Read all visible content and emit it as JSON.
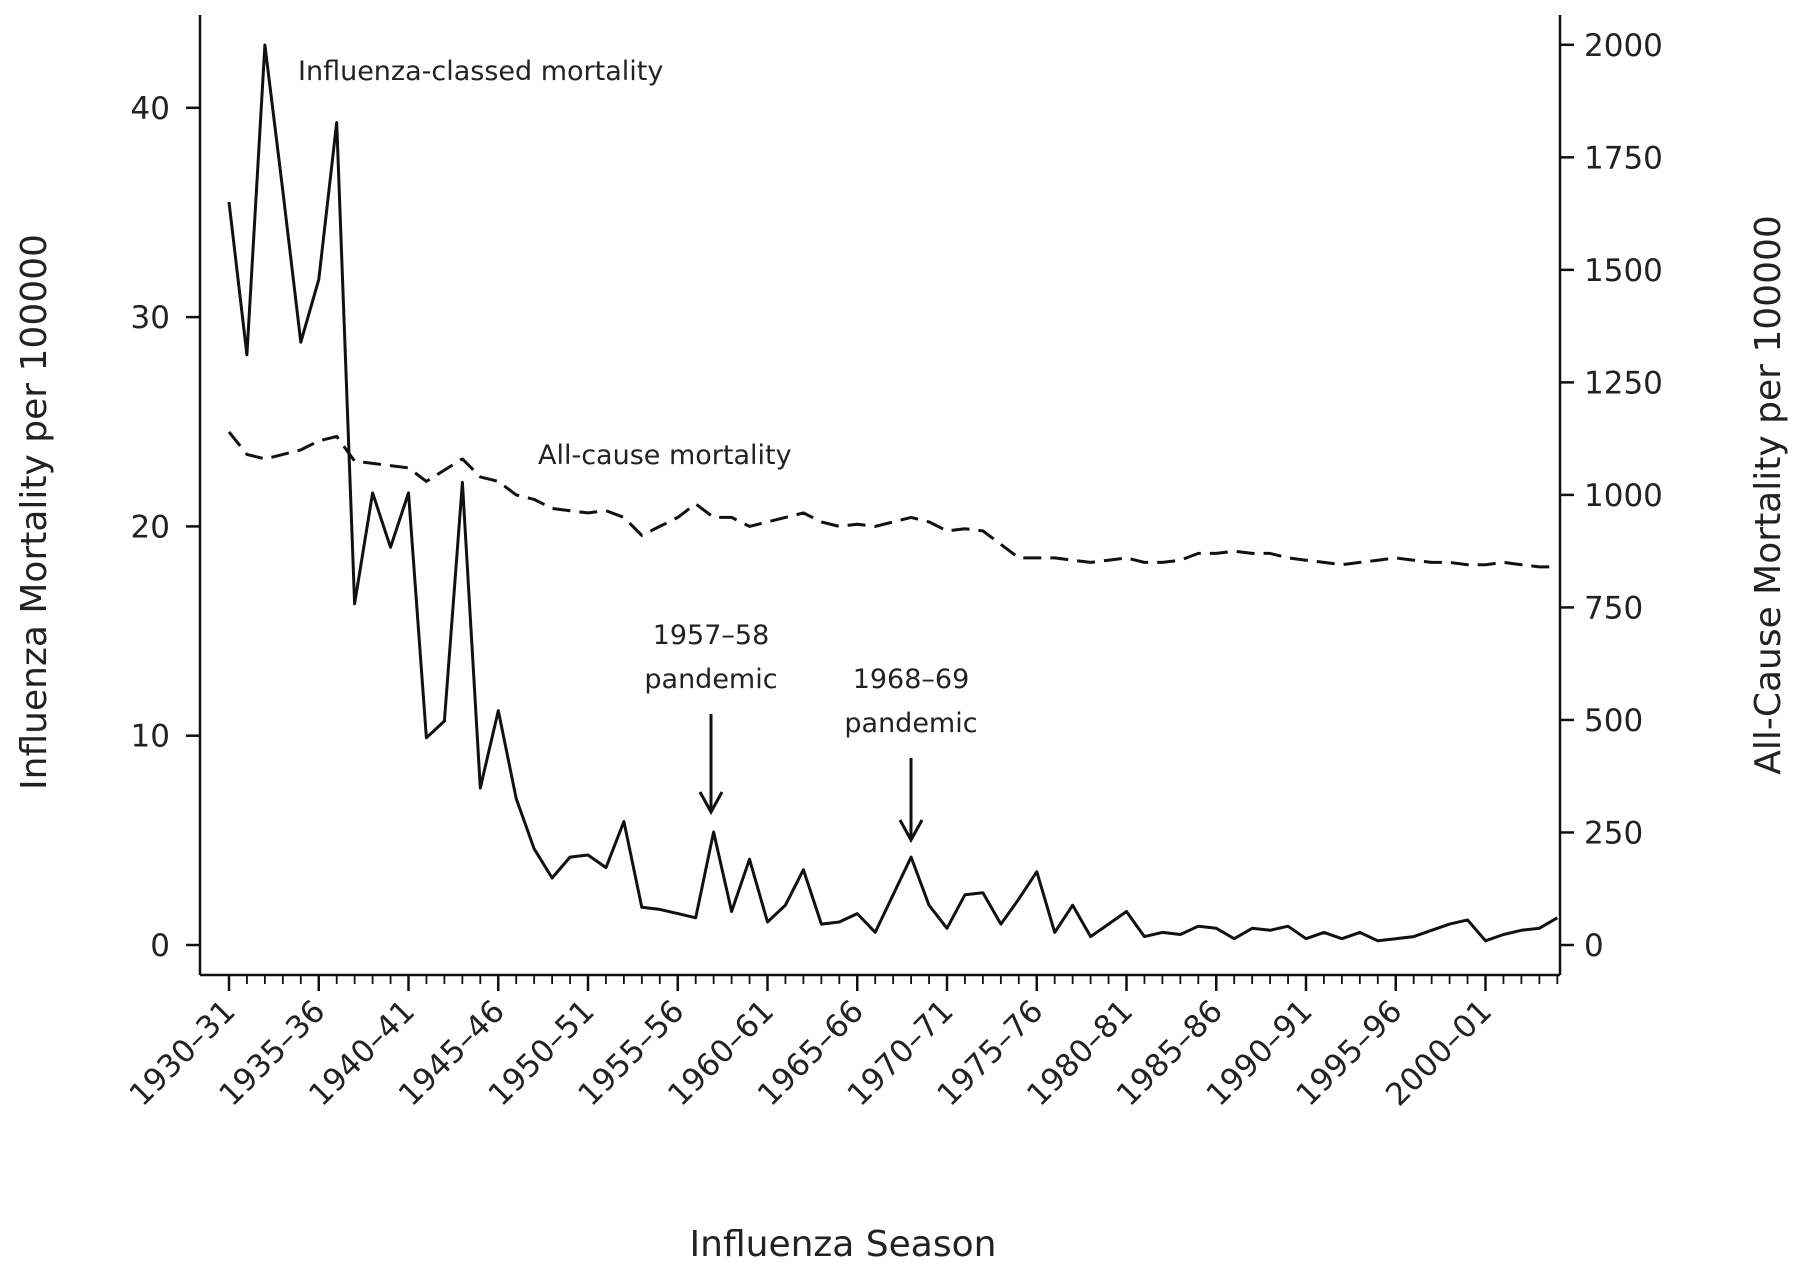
{
  "chart_data": {
    "type": "line",
    "xlabel": "Influenza Season",
    "ylabel_left": "Influenza Mortality per 100000",
    "ylabel_right": "All-Cause Mortality per 100000",
    "x_tick_labels": [
      "1930–31",
      "1935–36",
      "1940–41",
      "1945–46",
      "1950–51",
      "1955–56",
      "1960–61",
      "1965–66",
      "1970–71",
      "1975–76",
      "1980–81",
      "1985–86",
      "1990–91",
      "1995–96",
      "2000–01"
    ],
    "y_left": {
      "lim": [
        0,
        44
      ],
      "ticks": [
        0,
        10,
        20,
        30,
        40
      ]
    },
    "y_right": {
      "lim": [
        0,
        2000
      ],
      "ticks": [
        0,
        250,
        500,
        750,
        1000,
        1250,
        1500,
        1750,
        2000
      ]
    },
    "grid": false,
    "series": [
      {
        "name": "Influenza-classed mortality",
        "axis": "left",
        "style": "solid",
        "color": "#111111",
        "values": [
          35.5,
          28.2,
          43.0,
          36.0,
          28.8,
          31.8,
          39.3,
          16.3,
          21.6,
          19.0,
          21.6,
          9.9,
          10.7,
          22.1,
          7.5,
          11.2,
          7.0,
          4.6,
          3.2,
          4.2,
          4.3,
          3.7,
          5.9,
          1.8,
          1.7,
          1.5,
          1.3,
          5.4,
          1.6,
          4.1,
          1.1,
          1.9,
          3.6,
          1.0,
          1.1,
          1.5,
          0.6,
          2.4,
          4.2,
          1.9,
          0.8,
          2.4,
          2.5,
          1.0,
          2.2,
          3.5,
          0.6,
          1.9,
          0.4,
          1.0,
          1.6,
          0.4,
          0.6,
          0.5,
          0.9,
          0.8,
          0.3,
          0.8,
          0.7,
          0.9,
          0.3,
          0.6,
          0.3,
          0.6,
          0.2,
          0.3,
          0.4,
          0.7,
          1.0,
          1.2,
          0.2,
          0.5,
          0.7,
          0.8,
          1.3
        ]
      },
      {
        "name": "All-cause mortality",
        "axis": "right",
        "style": "dashed",
        "color": "#111111",
        "values": [
          1140,
          1090,
          1080,
          1090,
          1100,
          1120,
          1130,
          1075,
          1070,
          1065,
          1060,
          1030,
          1055,
          1080,
          1040,
          1030,
          1000,
          990,
          970,
          965,
          960,
          965,
          950,
          910,
          930,
          950,
          980,
          950,
          950,
          930,
          940,
          950,
          960,
          940,
          930,
          935,
          930,
          940,
          950,
          940,
          920,
          925,
          920,
          890,
          860,
          860,
          860,
          855,
          850,
          855,
          860,
          850,
          850,
          855,
          870,
          870,
          875,
          870,
          870,
          860,
          855,
          850,
          845,
          850,
          855,
          860,
          855,
          850,
          850,
          845,
          845,
          850,
          845,
          840,
          840
        ]
      }
    ],
    "annotations": [
      {
        "text": "Influenza-classed mortality"
      },
      {
        "text": "All-cause mortality"
      },
      {
        "text": "1957–58 pandemic",
        "lines": [
          "1957–58",
          "pandemic"
        ],
        "target_index": 27
      },
      {
        "text": "1968–69 pandemic",
        "lines": [
          "1968–69",
          "pandemic"
        ],
        "target_index": 38
      }
    ]
  }
}
